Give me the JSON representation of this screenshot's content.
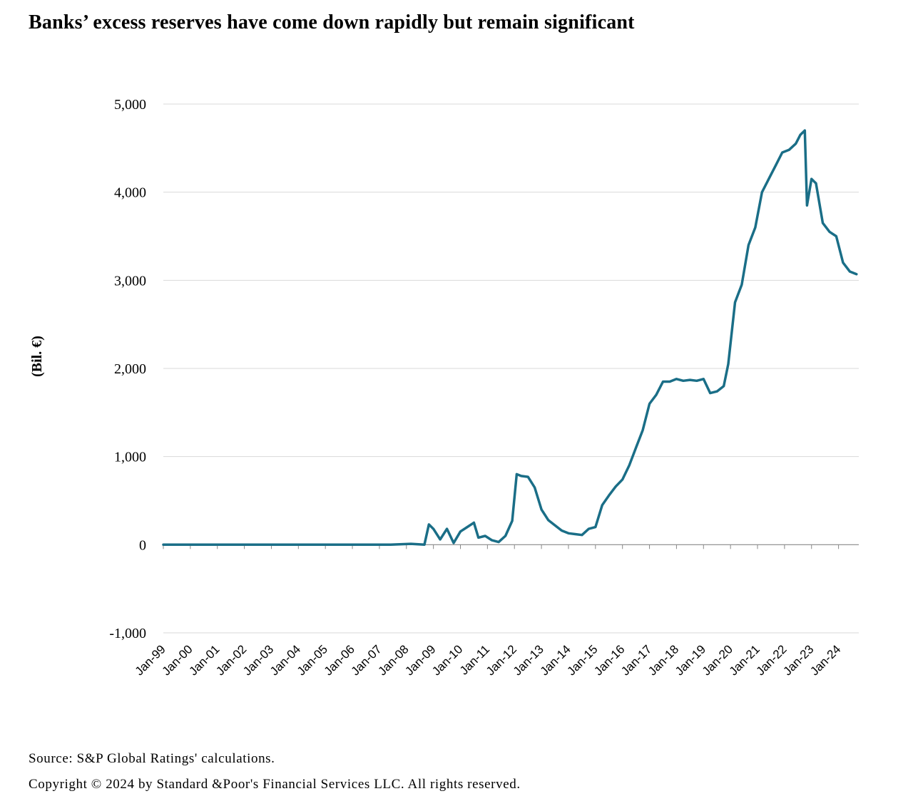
{
  "header": {
    "title": "Banks’ excess reserves have come down rapidly but remain significant"
  },
  "footer": {
    "source": "Source: S&P Global Ratings' calculations.",
    "copyright": "Copyright © 2024 by Standard &Poor's Financial Services LLC. All rights reserved."
  },
  "colors": {
    "line": "#1a6e87",
    "grid": "#d9d9d9",
    "axis": "#888888"
  },
  "chart_data": {
    "type": "line",
    "title": "Banks’ excess reserves have come down rapidly but remain significant",
    "ylabel": "(Bil. €)",
    "xlabel": "",
    "ylim": [
      -1000,
      5000
    ],
    "yticks": [
      5000,
      4000,
      3000,
      2000,
      1000,
      0,
      -1000
    ],
    "ytick_labels": [
      "5,000",
      "4,000",
      "3,000",
      "2,000",
      "1,000",
      "0",
      "-1,000"
    ],
    "x_range": [
      "1999-01",
      "2024-10"
    ],
    "xtick_labels": [
      "Jan-99",
      "Jan-00",
      "Jan-01",
      "Jan-02",
      "Jan-03",
      "Jan-04",
      "Jan-05",
      "Jan-06",
      "Jan-07",
      "Jan-08",
      "Jan-09",
      "Jan-10",
      "Jan-11",
      "Jan-12",
      "Jan-13",
      "Jan-14",
      "Jan-15",
      "Jan-16",
      "Jan-17",
      "Jan-18",
      "Jan-19",
      "Jan-20",
      "Jan-21",
      "Jan-22",
      "Jan-23",
      "Jan-24"
    ],
    "grid": true,
    "legend": "none",
    "series": [
      {
        "x": [
          "1999-01",
          "2000-06",
          "2002-01",
          "2004-01",
          "2006-01",
          "2007-06",
          "2008-03",
          "2008-09",
          "2008-11",
          "2009-01",
          "2009-04",
          "2009-07",
          "2009-10",
          "2010-01",
          "2010-04",
          "2010-07",
          "2010-09",
          "2010-12",
          "2011-03",
          "2011-06",
          "2011-09",
          "2011-12",
          "2012-02",
          "2012-04",
          "2012-07",
          "2012-10",
          "2013-01",
          "2013-04",
          "2013-07",
          "2013-10",
          "2014-01",
          "2014-04",
          "2014-07",
          "2014-10",
          "2015-01",
          "2015-04",
          "2015-07",
          "2015-10",
          "2016-01",
          "2016-04",
          "2016-07",
          "2016-10",
          "2017-01",
          "2017-04",
          "2017-07",
          "2017-10",
          "2018-01",
          "2018-04",
          "2018-07",
          "2018-10",
          "2019-01",
          "2019-04",
          "2019-07",
          "2019-10",
          "2019-12",
          "2020-03",
          "2020-06",
          "2020-09",
          "2020-12",
          "2021-03",
          "2021-06",
          "2021-09",
          "2021-12",
          "2022-03",
          "2022-06",
          "2022-08",
          "2022-10",
          "2022-11",
          "2023-01",
          "2023-03",
          "2023-06",
          "2023-09",
          "2023-12",
          "2024-03",
          "2024-06",
          "2024-09"
        ],
        "y": [
          0,
          0,
          0,
          0,
          0,
          0,
          10,
          0,
          230,
          180,
          60,
          180,
          20,
          150,
          200,
          250,
          80,
          100,
          50,
          30,
          100,
          270,
          800,
          780,
          770,
          650,
          400,
          280,
          220,
          160,
          130,
          120,
          110,
          180,
          200,
          450,
          560,
          660,
          740,
          900,
          1100,
          1300,
          1600,
          1700,
          1850,
          1850,
          1880,
          1860,
          1870,
          1860,
          1880,
          1720,
          1740,
          1800,
          2050,
          2750,
          2950,
          3400,
          3600,
          4000,
          4150,
          4300,
          4450,
          4480,
          4550,
          4650,
          4700,
          3850,
          4150,
          4100,
          3650,
          3550,
          3500,
          3200,
          3100,
          3070
        ]
      }
    ]
  }
}
